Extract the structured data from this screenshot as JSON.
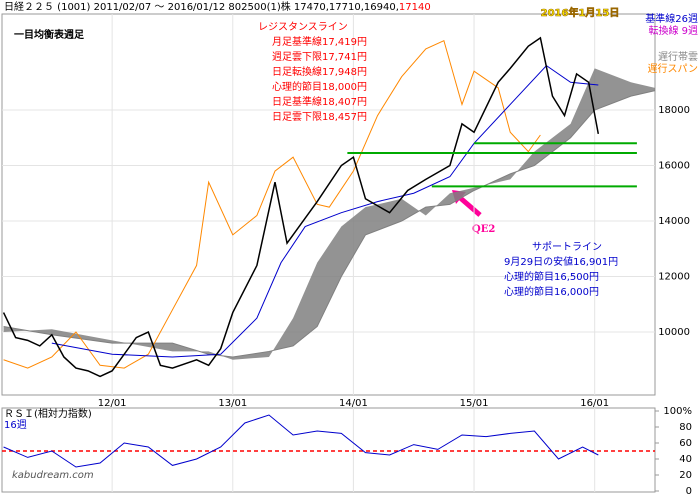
{
  "chart_data": {
    "type": "line",
    "header": "日経２２５ (1001) 2011/02/07 ～ 2016/01/12 802500(1)株 17470,17710,16940,",
    "header_last": "17140",
    "title": "一目均衡表週足",
    "date_label": "2016年1月15日",
    "resistance": [
      "レジスタンスライン",
      "月足基準線17,419円",
      "週足雲下限17,741円",
      "日足転換線17,948円",
      "心理的節目18,000円",
      "日足基準線18,407円",
      "日足雲下限18,457円"
    ],
    "support": [
      "サポートライン",
      "9月29日の安値16,901円",
      "心理的節目16,500円",
      "心理的節目16,000円"
    ],
    "arrow_label": "QE2",
    "legend": [
      {
        "name": "基準線26週",
        "color": "#0000cc"
      },
      {
        "name": "転換線 9週",
        "color": "#cc00cc"
      },
      {
        "name": "遅行帯雲",
        "color": "#888888"
      },
      {
        "name": "遅行スパン",
        "color": "#ff8800"
      }
    ],
    "xlim": [
      2011.087,
      2016.5
    ],
    "xticks": [
      {
        "value": 2012,
        "label": "12/01"
      },
      {
        "value": 2013,
        "label": "13/01"
      },
      {
        "value": 2014,
        "label": "14/01"
      },
      {
        "value": 2015,
        "label": "15/01"
      },
      {
        "value": 2016,
        "label": "16/01"
      }
    ],
    "ylim": [
      7730,
      21460
    ],
    "yticks": [
      10000,
      12000,
      14000,
      16000,
      18000
    ],
    "series": [
      {
        "name": "価格",
        "color": "#000000",
        "x": [
          2011.1,
          2011.2,
          2011.3,
          2011.4,
          2011.5,
          2011.6,
          2011.7,
          2011.8,
          2011.9,
          2012.0,
          2012.2,
          2012.3,
          2012.4,
          2012.5,
          2012.7,
          2012.8,
          2012.9,
          2013.0,
          2013.2,
          2013.35,
          2013.45,
          2013.6,
          2013.7,
          2013.9,
          2014.0,
          2014.1,
          2014.3,
          2014.45,
          2014.6,
          2014.8,
          2014.9,
          2015.0,
          2015.2,
          2015.3,
          2015.45,
          2015.55,
          2015.65,
          2015.75,
          2015.85,
          2015.95,
          2016.03
        ],
        "values": [
          10700,
          9800,
          9700,
          9500,
          9900,
          9100,
          8700,
          8600,
          8400,
          8600,
          9800,
          10000,
          8800,
          8700,
          9000,
          8800,
          9400,
          10700,
          12400,
          15400,
          13200,
          14100,
          14700,
          16000,
          16300,
          14800,
          14300,
          15100,
          15500,
          16000,
          17500,
          17200,
          19000,
          19500,
          20300,
          20600,
          18500,
          17800,
          19300,
          19000,
          17140
        ]
      },
      {
        "name": "基準線",
        "color": "#0000cc",
        "x": [
          2011.5,
          2012.0,
          2012.5,
          2012.9,
          2013.2,
          2013.4,
          2013.6,
          2013.9,
          2014.2,
          2014.5,
          2014.8,
          2015.0,
          2015.3,
          2015.6,
          2015.8,
          2016.03
        ],
        "values": [
          9600,
          9200,
          9100,
          9200,
          10500,
          12500,
          13800,
          14300,
          14700,
          15000,
          15600,
          16800,
          18200,
          19600,
          19000,
          18900
        ]
      },
      {
        "name": "遅行スパン",
        "color": "#ff8800",
        "x": [
          2011.1,
          2011.3,
          2011.5,
          2011.7,
          2011.9,
          2012.1,
          2012.3,
          2012.5,
          2012.7,
          2012.8,
          2013.0,
          2013.2,
          2013.35,
          2013.5,
          2013.7,
          2013.8,
          2014.0,
          2014.2,
          2014.4,
          2014.6,
          2014.75,
          2014.9,
          2015.0,
          2015.2,
          2015.3,
          2015.45,
          2015.55
        ],
        "values": [
          9000,
          8700,
          9100,
          10000,
          8800,
          8700,
          9200,
          10800,
          12400,
          15400,
          13500,
          14200,
          15800,
          16300,
          14600,
          14500,
          15800,
          17800,
          19200,
          20200,
          20500,
          18200,
          19400,
          18800,
          17200,
          16500,
          17100
        ]
      }
    ],
    "cloud": {
      "color": "#808080",
      "x": [
        2011.1,
        2011.5,
        2012.0,
        2012.5,
        2012.8,
        2013.0,
        2013.3,
        2013.5,
        2013.7,
        2013.9,
        2014.1,
        2014.4,
        2014.6,
        2014.8,
        2015.0,
        2015.3,
        2015.5,
        2015.8,
        2016.0,
        2016.3,
        2016.5
      ],
      "span_a": [
        10000,
        10100,
        9700,
        9300,
        9300,
        9000,
        9100,
        10500,
        12500,
        13800,
        14500,
        14800,
        14200,
        15000,
        15200,
        15500,
        16500,
        17500,
        19500,
        19000,
        18800
      ],
      "span_b": [
        10200,
        9900,
        9600,
        9600,
        9200,
        9100,
        9300,
        9500,
        10200,
        12000,
        13500,
        14000,
        14500,
        14600,
        15100,
        15700,
        16000,
        17000,
        18000,
        18500,
        18700
      ]
    },
    "lines": {
      "color": "#00aa00",
      "values": [
        16800,
        16450,
        15250
      ],
      "x_start": [
        2015.0,
        2013.95,
        2014.65
      ],
      "x_end": [
        2016.35,
        2016.35,
        2016.35
      ]
    },
    "rsi": {
      "label": "ＲＳＩ(相対力指数)",
      "period": "16週",
      "color": "#0000cc",
      "ref_color": "#ff0000",
      "ref": 50,
      "ylim": [
        0,
        100
      ],
      "yticks": [
        {
          "value": 100,
          "label": "100%"
        },
        80,
        60,
        40,
        20,
        0
      ],
      "x": [
        2011.1,
        2011.3,
        2011.5,
        2011.7,
        2011.9,
        2012.1,
        2012.3,
        2012.5,
        2012.7,
        2012.9,
        2013.1,
        2013.3,
        2013.5,
        2013.7,
        2013.9,
        2014.1,
        2014.3,
        2014.5,
        2014.7,
        2014.9,
        2015.1,
        2015.3,
        2015.5,
        2015.7,
        2015.9,
        2016.03
      ],
      "values": [
        55,
        42,
        50,
        30,
        35,
        60,
        55,
        32,
        40,
        55,
        85,
        95,
        70,
        75,
        72,
        48,
        45,
        58,
        52,
        70,
        68,
        72,
        75,
        40,
        55,
        45
      ]
    },
    "footer": "kabudream.com"
  }
}
